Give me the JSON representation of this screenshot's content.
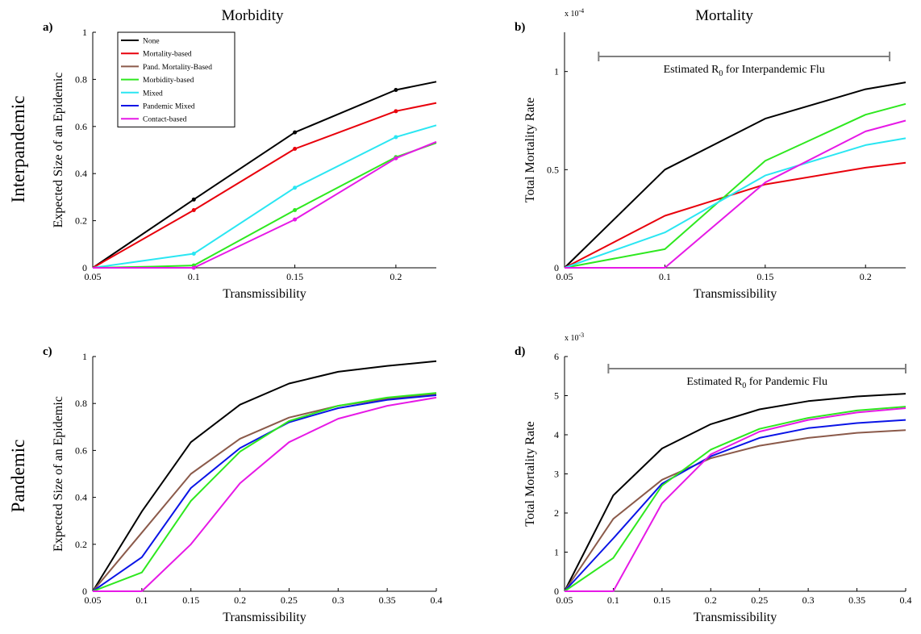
{
  "figure": {
    "col_titles": [
      "Morbidity",
      "Mortality"
    ],
    "row_titles": [
      "Interpandemic",
      "Pandemic"
    ]
  },
  "colors": {
    "None": "#000000",
    "Mortality-based": "#e8000b",
    "Pand. Mortality-Based": "#8b5a4a",
    "Morbidity-based": "#2ee81f",
    "Mixed": "#2ae6f2",
    "Pandemic Mixed": "#0a14e6",
    "Contact-based": "#e619e6"
  },
  "legend": {
    "items": [
      "None",
      "Mortality-based",
      "Pand. Mortality-Based",
      "Morbidity-based",
      "Mixed",
      "Pandemic Mixed",
      "Contact-based"
    ]
  },
  "chart_data": [
    {
      "panel": "a)",
      "type": "line",
      "xlabel": "Transmissibility",
      "ylabel": "Expected Size of an Epidemic",
      "xlim": [
        0.05,
        0.22
      ],
      "ylim": [
        0,
        1
      ],
      "xticks": [
        "0.05",
        "0.1",
        "0.15",
        "0.2"
      ],
      "xtick_values": [
        0.05,
        0.1,
        0.15,
        0.2
      ],
      "yticks": [
        "0",
        "0.2",
        "0.4",
        "0.6",
        "0.8",
        "1"
      ],
      "ytick_values": [
        0,
        0.2,
        0.4,
        0.6,
        0.8,
        1
      ],
      "legend_position": "top-left",
      "markers": true,
      "series": [
        {
          "name": "None",
          "x": [
            0.05,
            0.1,
            0.15,
            0.2,
            0.22
          ],
          "values": [
            0,
            0.29,
            0.575,
            0.755,
            0.79
          ]
        },
        {
          "name": "Mortality-based",
          "x": [
            0.05,
            0.1,
            0.15,
            0.2,
            0.22
          ],
          "values": [
            0,
            0.245,
            0.505,
            0.665,
            0.7
          ]
        },
        {
          "name": "Mixed",
          "x": [
            0.05,
            0.1,
            0.15,
            0.2,
            0.22
          ],
          "values": [
            0,
            0.06,
            0.34,
            0.555,
            0.605
          ]
        },
        {
          "name": "Morbidity-based",
          "x": [
            0.05,
            0.08,
            0.1,
            0.15,
            0.2,
            0.22
          ],
          "values": [
            0,
            0.005,
            0.01,
            0.245,
            0.47,
            0.53
          ]
        },
        {
          "name": "Contact-based",
          "x": [
            0.05,
            0.1,
            0.15,
            0.2,
            0.22
          ],
          "values": [
            0,
            0,
            0.205,
            0.465,
            0.535
          ]
        }
      ]
    },
    {
      "panel": "b)",
      "type": "line",
      "xlabel": "Transmissibility",
      "ylabel": "Total Mortality Rate",
      "multiplier": "x 10",
      "multiplier_exp": "-4",
      "annotation": "Estimated R",
      "annotation_sub": "0",
      "annotation_tail": " for Interpandemic Flu",
      "annotation_range": [
        0.067,
        0.212
      ],
      "xlim": [
        0.05,
        0.22
      ],
      "ylim": [
        0,
        1.2
      ],
      "xticks": [
        "0.05",
        "0.1",
        "0.15",
        "0.2"
      ],
      "xtick_values": [
        0.05,
        0.1,
        0.15,
        0.2
      ],
      "yticks": [
        "0",
        "0.5",
        "1"
      ],
      "ytick_values": [
        0,
        0.5,
        1
      ],
      "series": [
        {
          "name": "None",
          "x": [
            0.05,
            0.1,
            0.15,
            0.2,
            0.22
          ],
          "values": [
            0,
            0.5,
            0.76,
            0.91,
            0.945
          ]
        },
        {
          "name": "Mortality-based",
          "x": [
            0.05,
            0.1,
            0.15,
            0.2,
            0.22
          ],
          "values": [
            0,
            0.265,
            0.425,
            0.51,
            0.535
          ]
        },
        {
          "name": "Morbidity-based",
          "x": [
            0.05,
            0.1,
            0.15,
            0.2,
            0.22
          ],
          "values": [
            0,
            0.095,
            0.545,
            0.78,
            0.835
          ]
        },
        {
          "name": "Mixed",
          "x": [
            0.05,
            0.1,
            0.15,
            0.2,
            0.22
          ],
          "values": [
            0,
            0.18,
            0.47,
            0.625,
            0.66
          ]
        },
        {
          "name": "Contact-based",
          "x": [
            0.05,
            0.1,
            0.15,
            0.2,
            0.22
          ],
          "values": [
            0,
            0,
            0.435,
            0.695,
            0.75
          ]
        }
      ]
    },
    {
      "panel": "c)",
      "type": "line",
      "xlabel": "Transmissibility",
      "ylabel": "Expected Size of an Epidemic",
      "xlim": [
        0.05,
        0.4
      ],
      "ylim": [
        0,
        1
      ],
      "xticks": [
        "0.05",
        "0.1",
        "0.15",
        "0.2",
        "0.25",
        "0.3",
        "0.35",
        "0.4"
      ],
      "xtick_values": [
        0.05,
        0.1,
        0.15,
        0.2,
        0.25,
        0.3,
        0.35,
        0.4
      ],
      "yticks": [
        "0",
        "0.2",
        "0.4",
        "0.6",
        "0.8",
        "1"
      ],
      "ytick_values": [
        0,
        0.2,
        0.4,
        0.6,
        0.8,
        1
      ],
      "series": [
        {
          "name": "None",
          "x": [
            0.05,
            0.1,
            0.15,
            0.2,
            0.25,
            0.3,
            0.35,
            0.4
          ],
          "values": [
            0,
            0.34,
            0.635,
            0.795,
            0.885,
            0.935,
            0.96,
            0.98
          ]
        },
        {
          "name": "Pand. Mortality-Based",
          "x": [
            0.05,
            0.1,
            0.15,
            0.2,
            0.25,
            0.3,
            0.35,
            0.4
          ],
          "values": [
            0,
            0.25,
            0.5,
            0.65,
            0.74,
            0.79,
            0.82,
            0.84
          ]
        },
        {
          "name": "Pandemic Mixed",
          "x": [
            0.05,
            0.1,
            0.15,
            0.2,
            0.25,
            0.3,
            0.35,
            0.4
          ],
          "values": [
            0,
            0.145,
            0.44,
            0.61,
            0.72,
            0.78,
            0.815,
            0.835
          ]
        },
        {
          "name": "Morbidity-based",
          "x": [
            0.05,
            0.1,
            0.15,
            0.2,
            0.25,
            0.3,
            0.35,
            0.4
          ],
          "values": [
            0,
            0.08,
            0.385,
            0.595,
            0.725,
            0.79,
            0.825,
            0.845
          ]
        },
        {
          "name": "Contact-based",
          "x": [
            0.05,
            0.1,
            0.15,
            0.2,
            0.25,
            0.3,
            0.35,
            0.4
          ],
          "values": [
            0,
            0,
            0.2,
            0.46,
            0.635,
            0.735,
            0.79,
            0.825
          ]
        }
      ]
    },
    {
      "panel": "d)",
      "type": "line",
      "xlabel": "Transmissibility",
      "ylabel": "Total Mortality Rate",
      "multiplier": "x 10",
      "multiplier_exp": "-3",
      "annotation": "Estimated R",
      "annotation_sub": "0",
      "annotation_tail": " for Pandemic Flu",
      "annotation_range": [
        0.095,
        0.4
      ],
      "xlim": [
        0.05,
        0.4
      ],
      "ylim": [
        0,
        6
      ],
      "xticks": [
        "0.05",
        "0.1",
        "0.15",
        "0.2",
        "0.25",
        "0.3",
        "0.35",
        "0.4"
      ],
      "xtick_values": [
        0.05,
        0.1,
        0.15,
        0.2,
        0.25,
        0.3,
        0.35,
        0.4
      ],
      "yticks": [
        "0",
        "1",
        "2",
        "3",
        "4",
        "5",
        "6"
      ],
      "ytick_values": [
        0,
        1,
        2,
        3,
        4,
        5,
        6
      ],
      "series": [
        {
          "name": "None",
          "x": [
            0.05,
            0.1,
            0.15,
            0.2,
            0.25,
            0.3,
            0.35,
            0.4
          ],
          "values": [
            0,
            2.45,
            3.65,
            4.27,
            4.65,
            4.86,
            4.98,
            5.05
          ]
        },
        {
          "name": "Pand. Mortality-Based",
          "x": [
            0.05,
            0.1,
            0.15,
            0.2,
            0.25,
            0.3,
            0.35,
            0.4
          ],
          "values": [
            0,
            1.85,
            2.85,
            3.4,
            3.72,
            3.92,
            4.05,
            4.12
          ]
        },
        {
          "name": "Pandemic Mixed",
          "x": [
            0.05,
            0.1,
            0.15,
            0.2,
            0.25,
            0.3,
            0.35,
            0.4
          ],
          "values": [
            0,
            1.35,
            2.75,
            3.45,
            3.92,
            4.17,
            4.3,
            4.38
          ]
        },
        {
          "name": "Morbidity-based",
          "x": [
            0.05,
            0.1,
            0.15,
            0.2,
            0.25,
            0.3,
            0.35,
            0.4
          ],
          "values": [
            0,
            0.85,
            2.7,
            3.62,
            4.15,
            4.43,
            4.62,
            4.72
          ]
        },
        {
          "name": "Contact-based",
          "x": [
            0.05,
            0.1,
            0.15,
            0.2,
            0.25,
            0.3,
            0.35,
            0.4
          ],
          "values": [
            0,
            0,
            2.25,
            3.5,
            4.08,
            4.38,
            4.57,
            4.68
          ]
        }
      ]
    }
  ]
}
